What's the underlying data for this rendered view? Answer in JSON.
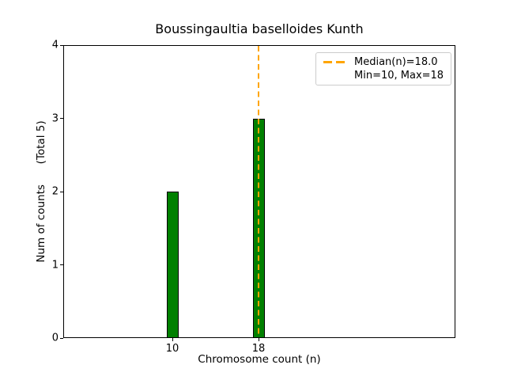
{
  "title": "Boussingaultia baselloides Kunth",
  "axes": {
    "xlabel": "Chromosome count (n)",
    "ylabel": "Num of counts      (Total 5)"
  },
  "legend": {
    "median_label": "Median(n)=18.0",
    "minmax_label": "Min=10, Max=18"
  },
  "colors": {
    "bar_fill": "#008000",
    "bar_edge": "#000000",
    "median_line": "#FFA500",
    "legend_border": "#cccccc",
    "text": "#000000"
  },
  "chart_data": {
    "type": "bar",
    "title": "Boussingaultia baselloides Kunth",
    "xlabel": "Chromosome count (n)",
    "ylabel": "Num of counts      (Total 5)",
    "categories": [
      10,
      18
    ],
    "values": [
      2,
      3
    ],
    "total_counts": 5,
    "xticks": [
      10,
      18
    ],
    "yticks": [
      0,
      1,
      2,
      3,
      4
    ],
    "ylim": [
      0,
      4
    ],
    "grid": false,
    "legend_position": "upper right",
    "legend_entries": [
      "Median(n)=18.0",
      "Min=10, Max=18"
    ],
    "median_line": {
      "x": 18,
      "value": 18.0,
      "style": "dashed",
      "color": "#FFA500"
    },
    "min": 10,
    "max": 18
  }
}
